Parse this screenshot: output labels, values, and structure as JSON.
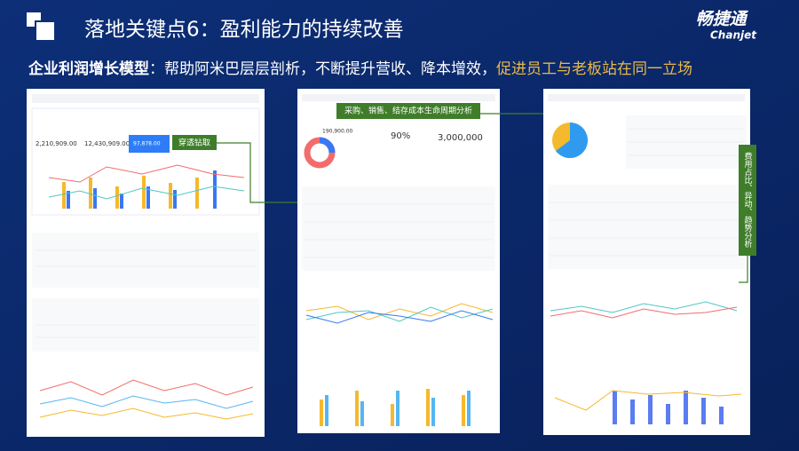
{
  "header": {
    "title": "落地关键点6：盈利能力的持续改善",
    "logo": "畅捷通",
    "logo_en": "Chanjet"
  },
  "subtitle": {
    "lead": "企业利润增长模型",
    "body": "：帮助阿米巴层层剖析，不断提升营收、降本增效，",
    "highlight": "促进员工与老板站在同一立场"
  },
  "panels": [
    {
      "callout": "穿透钻取",
      "figures": [
        "2,210,909.00",
        "12,430,909.00",
        "97,878.00"
      ]
    },
    {
      "callout": "采购、销售、结存成本生命周期分析",
      "figures": [
        "190,900.00",
        "90%",
        "3,000,000"
      ]
    },
    {
      "callout": "费用占比、异动、趋势分析"
    }
  ]
}
